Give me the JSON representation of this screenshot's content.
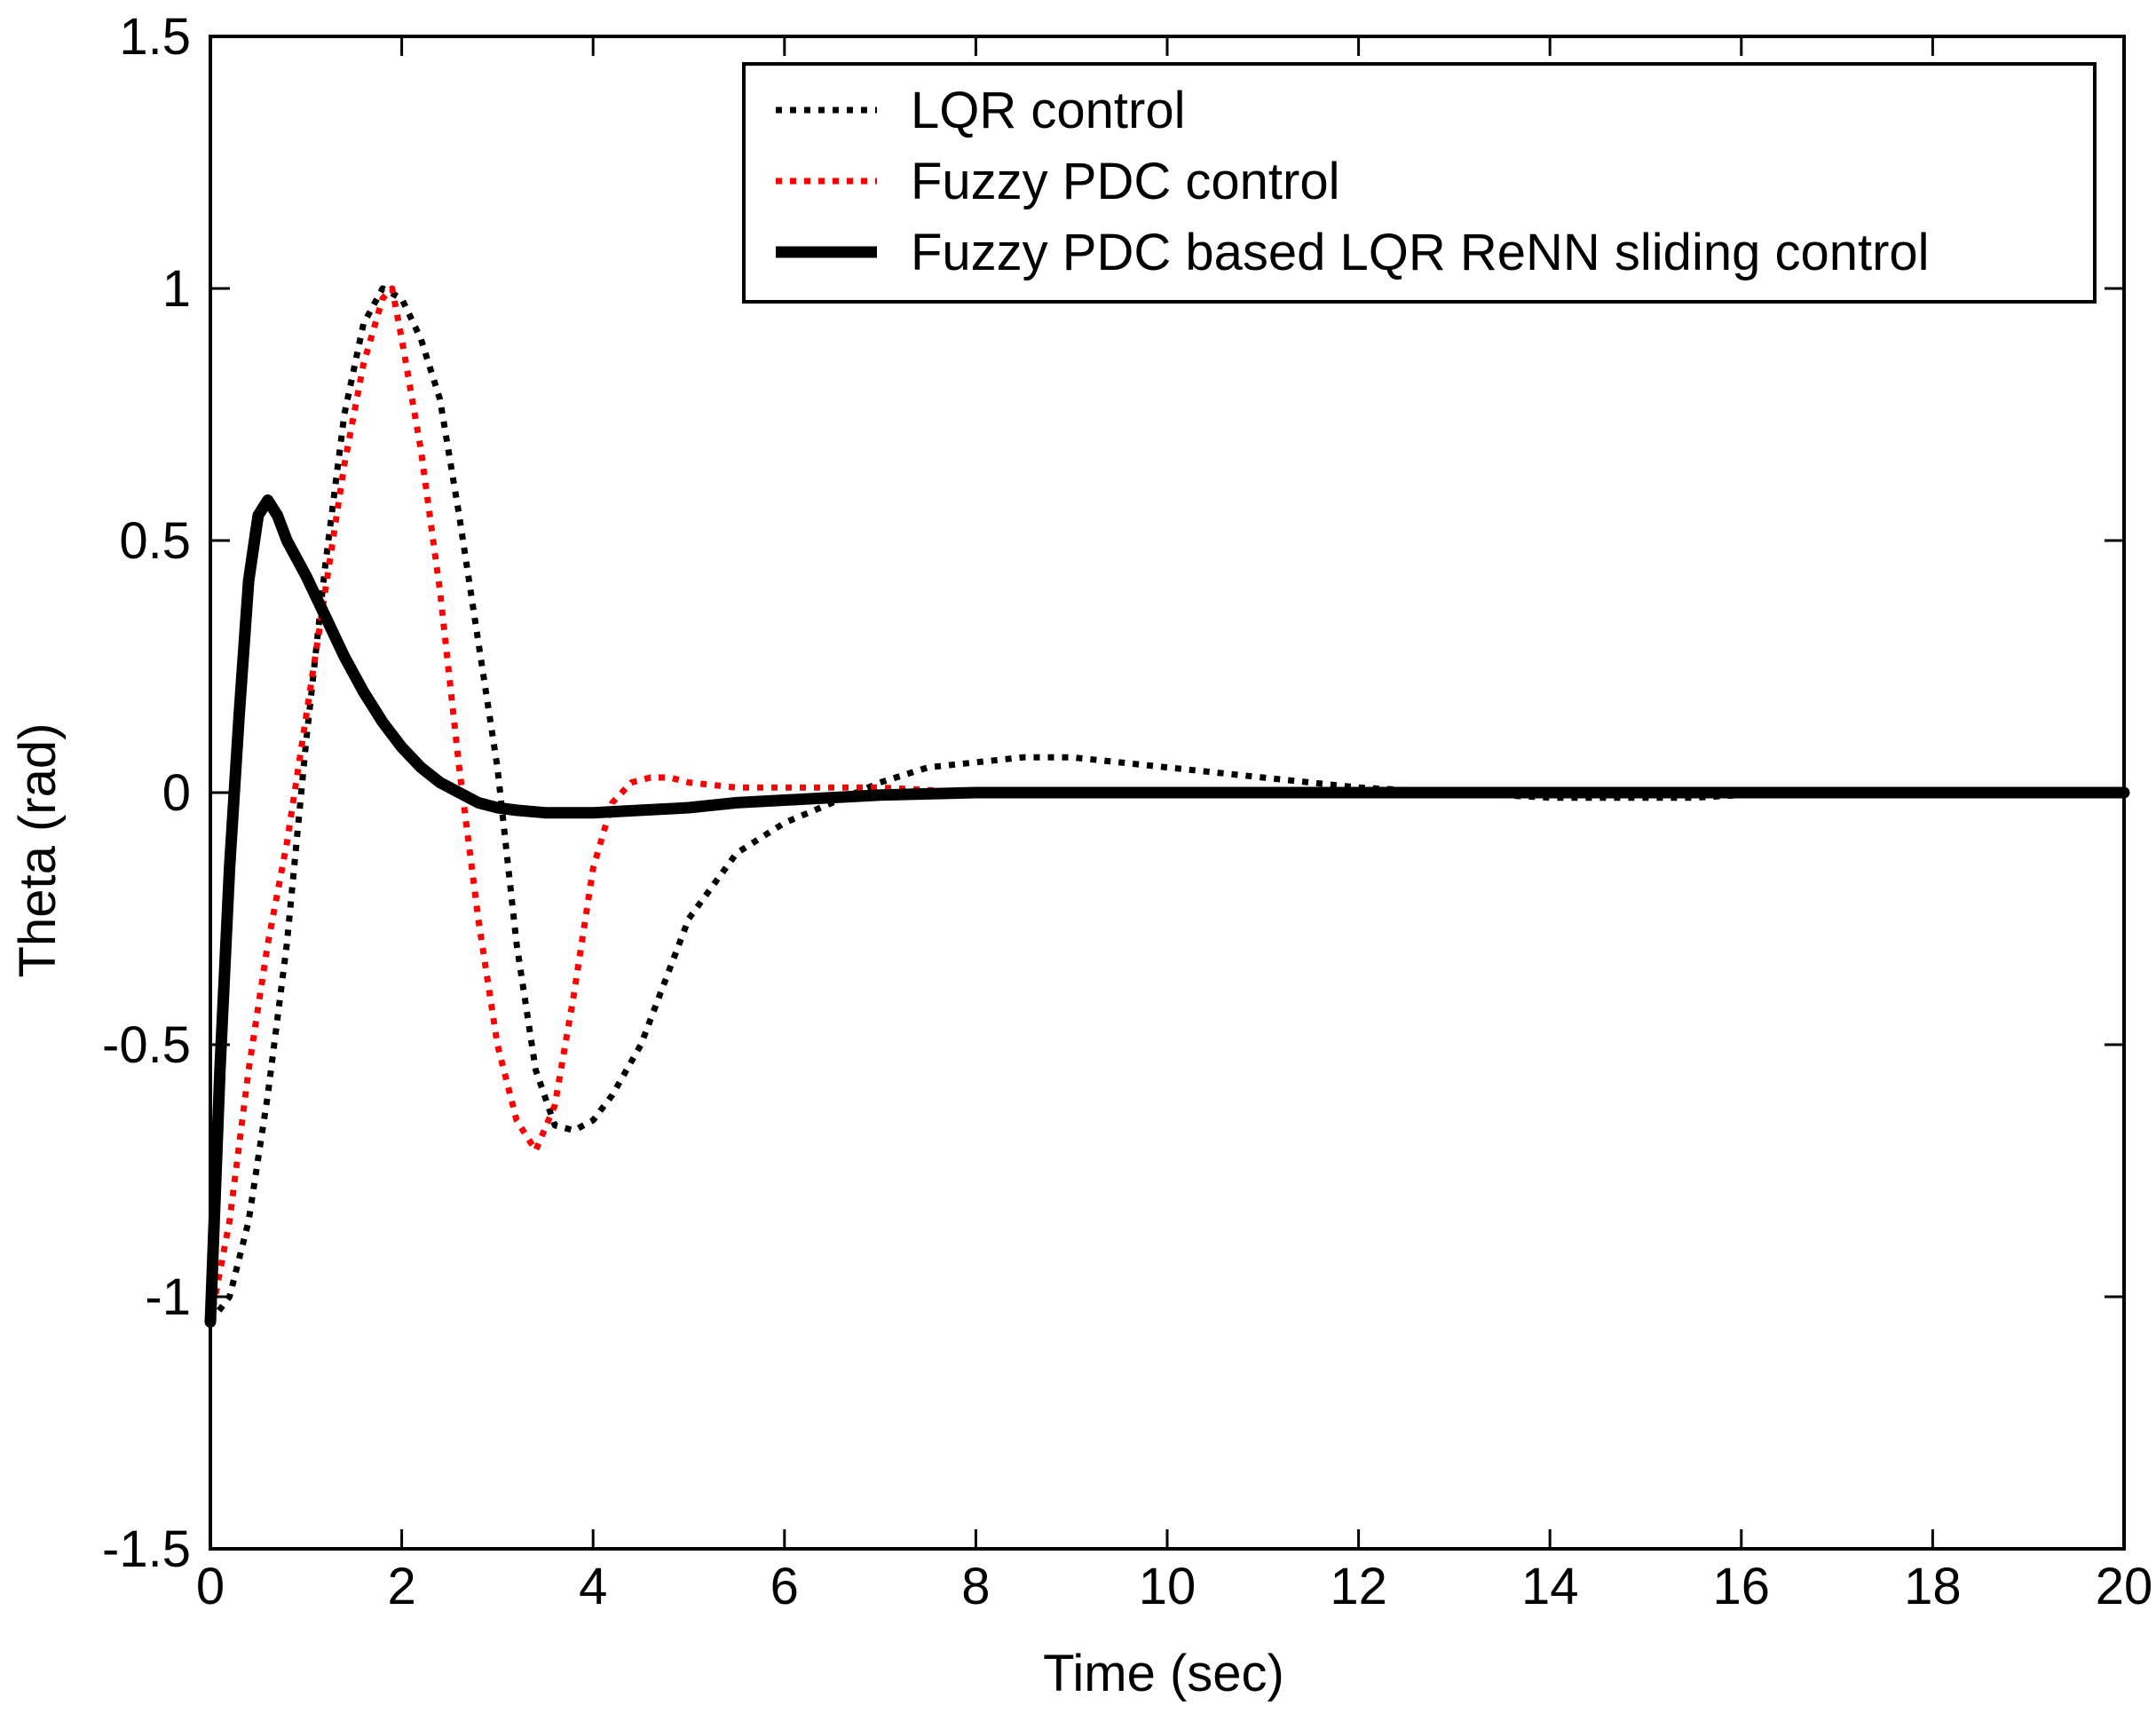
{
  "chart_data": {
    "type": "line",
    "title": "",
    "xlabel": "Time (sec)",
    "ylabel": "Theta (rad)",
    "xlim": [
      0,
      20
    ],
    "ylim": [
      -1.5,
      1.5
    ],
    "xticks": [
      0,
      2,
      4,
      6,
      8,
      10,
      12,
      14,
      16,
      18,
      20
    ],
    "yticks": [
      -1.5,
      -1,
      -0.5,
      0,
      0.5,
      1,
      1.5
    ],
    "xtick_labels": [
      "0",
      "2",
      "4",
      "6",
      "8",
      "10",
      "12",
      "14",
      "16",
      "18",
      "20"
    ],
    "ytick_labels": [
      "-1.5",
      "-1",
      "-0.5",
      "0",
      "0.5",
      "1",
      "1.5"
    ],
    "grid": false,
    "legend_position": "top-right",
    "series": [
      {
        "name": "LQR control",
        "color": "#000000",
        "style": "dotted",
        "points": [
          [
            0,
            -1.05
          ],
          [
            0.2,
            -1.0
          ],
          [
            0.4,
            -0.85
          ],
          [
            0.6,
            -0.6
          ],
          [
            0.8,
            -0.3
          ],
          [
            1.0,
            0.1
          ],
          [
            1.2,
            0.45
          ],
          [
            1.4,
            0.75
          ],
          [
            1.6,
            0.93
          ],
          [
            1.8,
            1.0
          ],
          [
            2.0,
            0.98
          ],
          [
            2.2,
            0.9
          ],
          [
            2.4,
            0.78
          ],
          [
            2.6,
            0.55
          ],
          [
            2.8,
            0.3
          ],
          [
            3.0,
            0.05
          ],
          [
            3.2,
            -0.3
          ],
          [
            3.4,
            -0.55
          ],
          [
            3.6,
            -0.66
          ],
          [
            3.8,
            -0.67
          ],
          [
            4.0,
            -0.65
          ],
          [
            4.2,
            -0.6
          ],
          [
            4.5,
            -0.5
          ],
          [
            4.8,
            -0.35
          ],
          [
            5.0,
            -0.25
          ],
          [
            5.5,
            -0.12
          ],
          [
            6.0,
            -0.06
          ],
          [
            6.5,
            -0.02
          ],
          [
            7.0,
            0.02
          ],
          [
            7.5,
            0.05
          ],
          [
            8.0,
            0.06
          ],
          [
            8.5,
            0.07
          ],
          [
            9.0,
            0.07
          ],
          [
            9.5,
            0.06
          ],
          [
            10.0,
            0.05
          ],
          [
            11.0,
            0.03
          ],
          [
            12.0,
            0.01
          ],
          [
            13.0,
            0.0
          ],
          [
            14.0,
            -0.01
          ],
          [
            15.5,
            -0.01
          ],
          [
            16.5,
            0.0
          ],
          [
            20.0,
            0.0
          ]
        ]
      },
      {
        "name": "Fuzzy PDC control",
        "color": "#ff0000",
        "style": "dotted",
        "points": [
          [
            0,
            -1.05
          ],
          [
            0.2,
            -0.85
          ],
          [
            0.4,
            -0.55
          ],
          [
            0.6,
            -0.3
          ],
          [
            0.8,
            -0.1
          ],
          [
            1.0,
            0.15
          ],
          [
            1.2,
            0.4
          ],
          [
            1.4,
            0.65
          ],
          [
            1.6,
            0.85
          ],
          [
            1.8,
            0.98
          ],
          [
            1.9,
            1.0
          ],
          [
            2.0,
            0.9
          ],
          [
            2.2,
            0.68
          ],
          [
            2.4,
            0.4
          ],
          [
            2.6,
            0.05
          ],
          [
            2.8,
            -0.25
          ],
          [
            3.0,
            -0.5
          ],
          [
            3.2,
            -0.65
          ],
          [
            3.4,
            -0.71
          ],
          [
            3.6,
            -0.62
          ],
          [
            3.8,
            -0.4
          ],
          [
            4.0,
            -0.15
          ],
          [
            4.2,
            -0.02
          ],
          [
            4.4,
            0.02
          ],
          [
            4.6,
            0.03
          ],
          [
            4.8,
            0.03
          ],
          [
            5.0,
            0.02
          ],
          [
            5.5,
            0.01
          ],
          [
            6.0,
            0.01
          ],
          [
            7.0,
            0.01
          ],
          [
            8.0,
            0.0
          ],
          [
            20.0,
            0.0
          ]
        ]
      },
      {
        "name": "Fuzzy PDC based LQR ReNN sliding control",
        "color": "#000000",
        "style": "solid",
        "points": [
          [
            0,
            -1.05
          ],
          [
            0.05,
            -0.8
          ],
          [
            0.1,
            -0.55
          ],
          [
            0.2,
            -0.15
          ],
          [
            0.3,
            0.15
          ],
          [
            0.4,
            0.42
          ],
          [
            0.5,
            0.55
          ],
          [
            0.6,
            0.58
          ],
          [
            0.7,
            0.55
          ],
          [
            0.8,
            0.5
          ],
          [
            1.0,
            0.43
          ],
          [
            1.2,
            0.35
          ],
          [
            1.4,
            0.27
          ],
          [
            1.6,
            0.2
          ],
          [
            1.8,
            0.14
          ],
          [
            2.0,
            0.09
          ],
          [
            2.2,
            0.05
          ],
          [
            2.4,
            0.02
          ],
          [
            2.6,
            0.0
          ],
          [
            2.8,
            -0.02
          ],
          [
            3.0,
            -0.03
          ],
          [
            3.2,
            -0.035
          ],
          [
            3.5,
            -0.04
          ],
          [
            4.0,
            -0.04
          ],
          [
            4.5,
            -0.035
          ],
          [
            5.0,
            -0.03
          ],
          [
            5.5,
            -0.02
          ],
          [
            6.0,
            -0.015
          ],
          [
            7.0,
            -0.005
          ],
          [
            8.0,
            0.0
          ],
          [
            20.0,
            0.0
          ]
        ]
      }
    ]
  }
}
